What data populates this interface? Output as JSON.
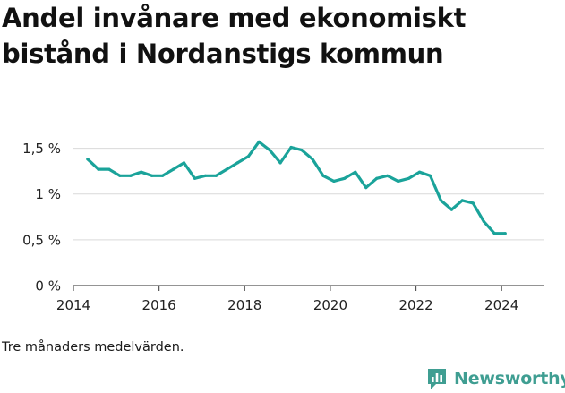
{
  "header": {
    "title": "Andel invånare med ekonomiskt bistånd i Nordanstigs kommun"
  },
  "footer": {
    "note": "Tre månaders medelvärden.",
    "brand": "Newsworthy",
    "brand_icon": "newsworthy-logo-icon"
  },
  "colors": {
    "line": "#1aa39a",
    "grid": "#d9d9d9",
    "axis": "#555555",
    "brand": "#3f9e92"
  },
  "chart_data": {
    "type": "line",
    "title": "Andel invånare med ekonomiskt bistånd i Nordanstigs kommun",
    "xlabel": "",
    "ylabel": "",
    "xlim": [
      2014.0,
      2025.0
    ],
    "ylim": [
      0,
      1.75
    ],
    "x_ticks": [
      2014,
      2016,
      2018,
      2020,
      2022,
      2024
    ],
    "x_tick_labels": [
      "2014",
      "2016",
      "2018",
      "2020",
      "2022",
      "2024"
    ],
    "y_ticks": [
      0,
      0.5,
      1,
      1.5
    ],
    "y_tick_labels": [
      "0 %",
      "0,5 %",
      "1 %",
      "1,5 %"
    ],
    "grid": true,
    "legend": "none",
    "series": [
      {
        "x": [
          "2014-05",
          "2014-08",
          "2014-11",
          "2015-02",
          "2015-05",
          "2015-08",
          "2015-11",
          "2016-02",
          "2016-05",
          "2016-08",
          "2016-11",
          "2017-02",
          "2017-05",
          "2017-08",
          "2017-11",
          "2018-02",
          "2018-05",
          "2018-08",
          "2018-11",
          "2019-02",
          "2019-05",
          "2019-08",
          "2019-11",
          "2020-02",
          "2020-05",
          "2020-08",
          "2020-11",
          "2021-02",
          "2021-05",
          "2021-08",
          "2021-11",
          "2022-02",
          "2022-05",
          "2022-08",
          "2022-11",
          "2023-02",
          "2023-05",
          "2023-08",
          "2023-11",
          "2024-02"
        ],
        "values": [
          1.38,
          1.27,
          1.27,
          1.2,
          1.2,
          1.24,
          1.2,
          1.2,
          1.27,
          1.34,
          1.17,
          1.2,
          1.2,
          1.27,
          1.34,
          1.41,
          1.57,
          1.48,
          1.34,
          1.51,
          1.48,
          1.38,
          1.2,
          1.14,
          1.17,
          1.24,
          1.07,
          1.17,
          1.2,
          1.14,
          1.17,
          1.24,
          1.2,
          0.93,
          0.83,
          0.93,
          0.9,
          0.7,
          0.57,
          0.57
        ]
      }
    ]
  }
}
